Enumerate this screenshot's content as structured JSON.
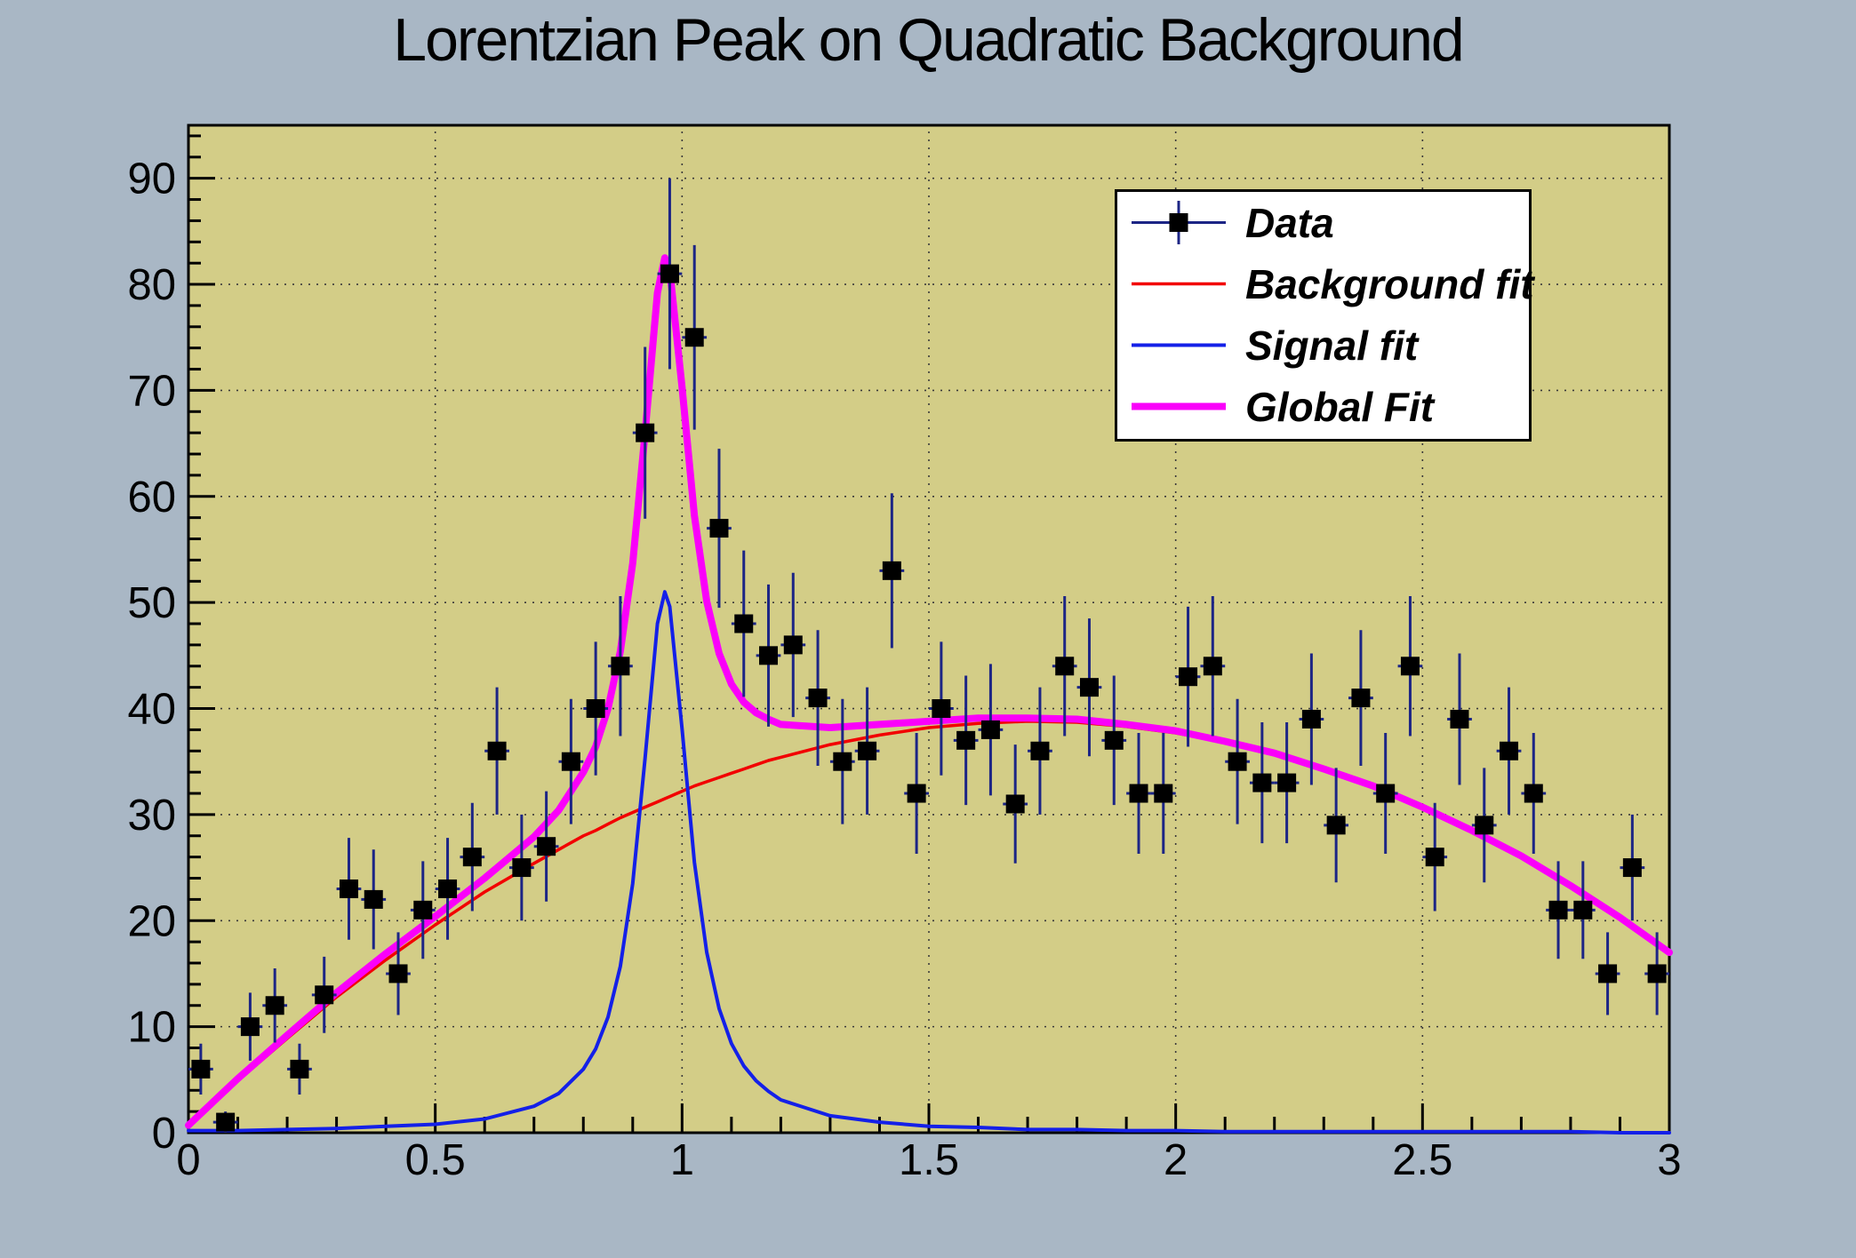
{
  "chart_data": {
    "type": "scatter+line",
    "title": "Lorentzian Peak on Quadratic Background",
    "xlabel": "",
    "ylabel": "",
    "x_range": [
      0,
      3
    ],
    "y_range": [
      0,
      95
    ],
    "grid": true,
    "grid_style": "dotted",
    "x_ticks": {
      "values": [
        0,
        0.5,
        1,
        1.5,
        2,
        2.5,
        3
      ],
      "labels": [
        "0",
        "0.5",
        "1",
        "1.5",
        "2",
        "2.5",
        "3"
      ],
      "minor_step": 0.1
    },
    "y_ticks": {
      "values": [
        0,
        10,
        20,
        30,
        40,
        50,
        60,
        70,
        80,
        90
      ],
      "labels": [
        "0",
        "10",
        "20",
        "30",
        "40",
        "50",
        "60",
        "70",
        "80",
        "90"
      ],
      "minor_step": 2
    },
    "colors": {
      "outer_background": "#a9b7c5",
      "plot_background": "#d3cd87",
      "frame": "#000000",
      "gridline": "#2b2b33",
      "data_marker": "#000000",
      "error_bar": "#1c2585",
      "background_fit": "#f20000",
      "signal_fit": "#1420e8",
      "global_fit": "#fa00fa"
    },
    "series": [
      {
        "name": "Data",
        "type": "points",
        "marker": "square",
        "xerr": 0.025,
        "x": [
          0.025,
          0.075,
          0.125,
          0.175,
          0.225,
          0.275,
          0.325,
          0.375,
          0.425,
          0.475,
          0.525,
          0.575,
          0.625,
          0.675,
          0.725,
          0.775,
          0.825,
          0.875,
          0.925,
          0.975,
          1.025,
          1.075,
          1.125,
          1.175,
          1.225,
          1.275,
          1.325,
          1.375,
          1.425,
          1.475,
          1.525,
          1.575,
          1.625,
          1.675,
          1.725,
          1.775,
          1.825,
          1.875,
          1.925,
          1.975,
          2.025,
          2.075,
          2.125,
          2.175,
          2.225,
          2.275,
          2.325,
          2.375,
          2.425,
          2.475,
          2.525,
          2.575,
          2.625,
          2.675,
          2.725,
          2.775,
          2.825,
          2.875,
          2.925,
          2.975
        ],
        "y": [
          6,
          1,
          10,
          12,
          6,
          13,
          23,
          22,
          15,
          21,
          23,
          26,
          36,
          25,
          27,
          35,
          40,
          44,
          66,
          81,
          75,
          57,
          48,
          45,
          46,
          41,
          35,
          36,
          53,
          32,
          40,
          37,
          38,
          31,
          36,
          44,
          42,
          37,
          32,
          32,
          43,
          44,
          35,
          33,
          33,
          39,
          29,
          41,
          32,
          44,
          26,
          39,
          29,
          36,
          32,
          21,
          21,
          15,
          25,
          15
        ],
        "yerr": [
          2.4,
          1.0,
          3.2,
          3.5,
          2.4,
          3.6,
          4.8,
          4.7,
          3.9,
          4.6,
          4.8,
          5.1,
          6.0,
          5.0,
          5.2,
          5.9,
          6.3,
          6.6,
          8.1,
          9.0,
          8.7,
          7.5,
          6.9,
          6.7,
          6.8,
          6.4,
          5.9,
          6.0,
          7.3,
          5.7,
          6.3,
          6.1,
          6.2,
          5.6,
          6.0,
          6.6,
          6.5,
          6.1,
          5.7,
          5.7,
          6.6,
          6.6,
          5.9,
          5.7,
          5.7,
          6.2,
          5.4,
          6.4,
          5.7,
          6.6,
          5.1,
          6.2,
          5.4,
          6.0,
          5.7,
          4.6,
          4.6,
          3.9,
          5.0,
          3.9
        ]
      },
      {
        "name": "Background fit",
        "type": "line",
        "width": 3.5,
        "x": [
          0,
          0.1,
          0.2,
          0.3,
          0.4,
          0.5,
          0.6,
          0.7,
          0.75,
          0.8,
          0.825,
          0.85,
          0.875,
          0.9,
          0.925,
          0.95,
          0.965,
          0.975,
          1.0,
          1.025,
          1.05,
          1.075,
          1.1,
          1.125,
          1.15,
          1.175,
          1.2,
          1.3,
          1.4,
          1.5,
          1.6,
          1.7,
          1.8,
          1.9,
          2.0,
          2.1,
          2.2,
          2.3,
          2.4,
          2.5,
          2.6,
          2.7,
          2.8,
          2.9,
          3.0
        ],
        "y": [
          0.5,
          4.9,
          8.9,
          12.8,
          16.3,
          19.6,
          22.7,
          25.4,
          26.7,
          28.0,
          28.5,
          29.1,
          29.7,
          30.2,
          30.7,
          31.2,
          31.5,
          31.7,
          32.2,
          32.7,
          33.1,
          33.5,
          33.9,
          34.3,
          34.7,
          35.1,
          35.4,
          36.6,
          37.5,
          38.2,
          38.6,
          38.8,
          38.7,
          38.3,
          37.7,
          36.8,
          35.7,
          34.2,
          32.6,
          30.6,
          28.4,
          26.0,
          23.2,
          20.3,
          17.0
        ]
      },
      {
        "name": "Signal fit",
        "type": "line",
        "width": 4,
        "x": [
          0,
          0.1,
          0.2,
          0.3,
          0.4,
          0.5,
          0.6,
          0.7,
          0.75,
          0.8,
          0.825,
          0.85,
          0.875,
          0.9,
          0.925,
          0.95,
          0.965,
          0.975,
          1.0,
          1.025,
          1.05,
          1.075,
          1.1,
          1.125,
          1.15,
          1.175,
          1.2,
          1.3,
          1.4,
          1.5,
          1.6,
          1.7,
          1.8,
          1.9,
          2.0,
          2.1,
          2.2,
          2.3,
          2.4,
          2.5,
          2.6,
          2.7,
          2.8,
          2.9,
          3.0
        ],
        "y": [
          0.2,
          0.2,
          0.3,
          0.4,
          0.6,
          0.8,
          1.3,
          2.5,
          3.7,
          6.0,
          7.9,
          10.9,
          15.7,
          23.5,
          35.3,
          48.0,
          51.0,
          49.6,
          38.1,
          25.5,
          17.0,
          11.7,
          8.4,
          6.3,
          4.9,
          3.9,
          3.1,
          1.6,
          1.0,
          0.6,
          0.5,
          0.3,
          0.3,
          0.2,
          0.2,
          0.1,
          0.1,
          0.1,
          0.1,
          0.1,
          0.1,
          0.1,
          0.1,
          0.0,
          0.0
        ]
      },
      {
        "name": "Global Fit",
        "type": "line",
        "width": 8,
        "x": [
          0,
          0.1,
          0.2,
          0.3,
          0.4,
          0.5,
          0.6,
          0.7,
          0.75,
          0.8,
          0.825,
          0.85,
          0.875,
          0.9,
          0.925,
          0.95,
          0.965,
          0.975,
          1.0,
          1.025,
          1.05,
          1.075,
          1.1,
          1.125,
          1.15,
          1.175,
          1.2,
          1.3,
          1.4,
          1.5,
          1.6,
          1.7,
          1.8,
          1.9,
          2.0,
          2.1,
          2.2,
          2.3,
          2.4,
          2.5,
          2.6,
          2.7,
          2.8,
          2.9,
          3.0
        ],
        "y": [
          0.7,
          5.1,
          9.2,
          13.2,
          16.9,
          20.4,
          24.0,
          27.9,
          30.4,
          34.0,
          36.4,
          40.0,
          45.4,
          53.7,
          66.0,
          79.2,
          82.5,
          81.3,
          70.3,
          58.2,
          50.1,
          45.2,
          42.3,
          40.6,
          39.6,
          39.0,
          38.5,
          38.2,
          38.5,
          38.8,
          39.1,
          39.1,
          39.0,
          38.5,
          37.9,
          36.9,
          35.8,
          34.3,
          32.7,
          30.7,
          28.5,
          26.1,
          23.3,
          20.3,
          17.0
        ]
      }
    ],
    "legend": {
      "position": "top-right",
      "entries": [
        {
          "label": "Data",
          "sample": "marker"
        },
        {
          "label": "Background fit",
          "sample": "line",
          "series": 1
        },
        {
          "label": "Signal fit",
          "sample": "line",
          "series": 2
        },
        {
          "label": "Global Fit",
          "sample": "line",
          "series": 3
        }
      ]
    }
  }
}
